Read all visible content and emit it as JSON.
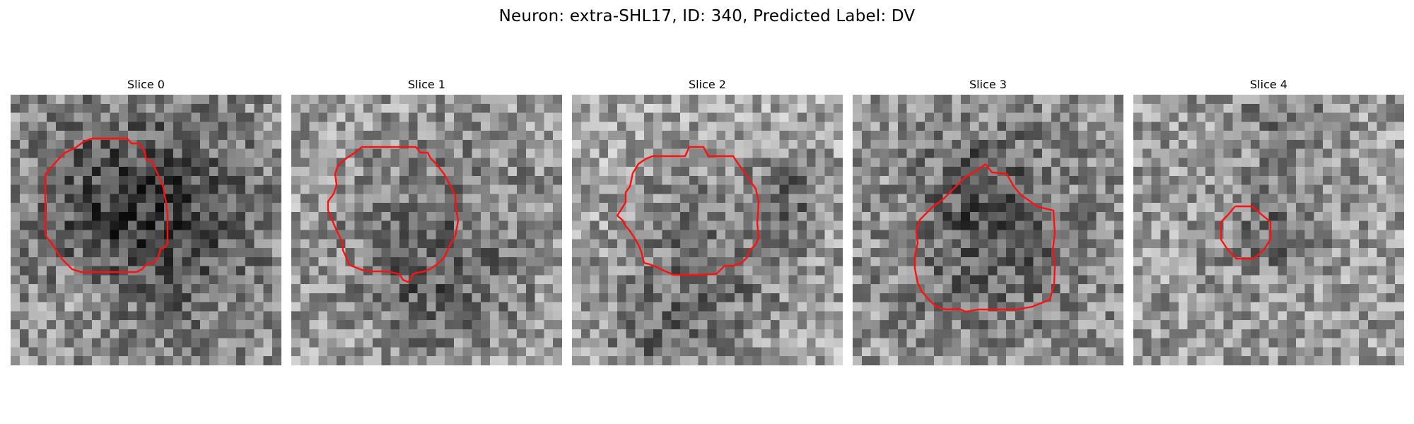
{
  "title": "Neuron: extra-SHL17, ID: 340, Predicted Label: DV",
  "colors": {
    "contour": "#ff1010",
    "background": "#ffffff"
  },
  "image": {
    "colormap": "gray",
    "grid": 30
  },
  "panels": [
    {
      "label": "Slice 0"
    },
    {
      "label": "Slice 1"
    },
    {
      "label": "Slice 2"
    },
    {
      "label": "Slice 3"
    },
    {
      "label": "Slice 4"
    }
  ]
}
